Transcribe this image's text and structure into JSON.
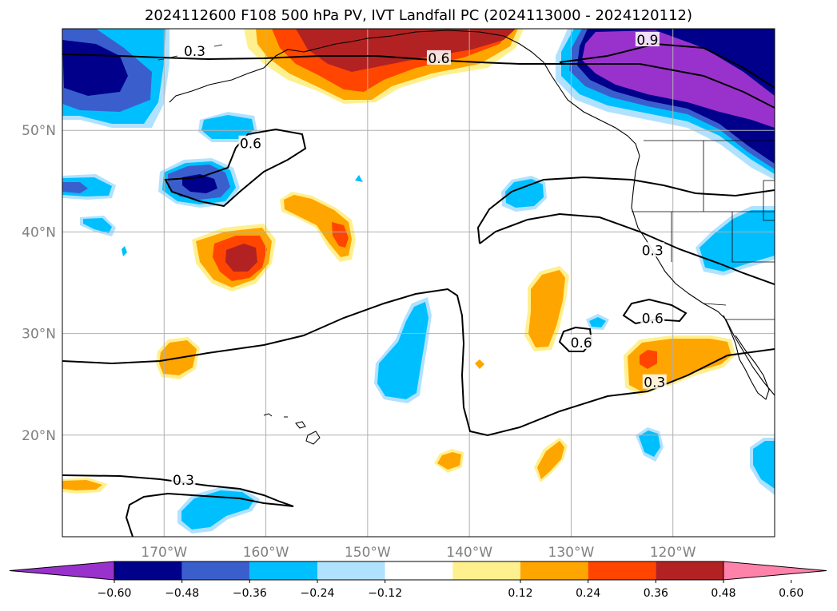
{
  "title": "2024112600 F108 500 hPa PV, IVT Landfall PC (2024113000 - 2024120112)",
  "colors": {
    "neg": [
      "#9932cc",
      "#00008b",
      "#3a5fcd",
      "#00bfff",
      "#b0e2ff"
    ],
    "zero": "#ffffff",
    "pos": [
      "#fff08f",
      "#ffa500",
      "#ff4500",
      "#b22222",
      "#ff82ab"
    ],
    "contour": "#000000",
    "grid": "#b0b0b0",
    "coast": "#000000"
  },
  "chart_data": {
    "type": "map",
    "projection": "PlateCarree",
    "extent": {
      "lon": [
        -180,
        -110
      ],
      "lat": [
        10,
        60
      ]
    },
    "lon_ticks": [
      {
        "value": -170,
        "label": "170°W"
      },
      {
        "value": -160,
        "label": "160°W"
      },
      {
        "value": -150,
        "label": "150°W"
      },
      {
        "value": -140,
        "label": "140°W"
      },
      {
        "value": -130,
        "label": "130°W"
      },
      {
        "value": -120,
        "label": "120°W"
      }
    ],
    "lat_ticks": [
      {
        "value": 50,
        "label": "50°N"
      },
      {
        "value": 40,
        "label": "40°N"
      },
      {
        "value": 30,
        "label": "30°N"
      },
      {
        "value": 20,
        "label": "20°N"
      }
    ],
    "colorbar": {
      "levels": [
        -0.6,
        -0.48,
        -0.36,
        -0.24,
        -0.12,
        0.12,
        0.24,
        0.36,
        0.48,
        0.6
      ],
      "labels": [
        "−0.60",
        "−0.48",
        "−0.36",
        "−0.24",
        "−0.12",
        "0.12",
        "0.24",
        "0.36",
        "0.48",
        "0.60"
      ],
      "extend": "both"
    },
    "contour_labels": [
      {
        "text": "0.3",
        "lon": -167,
        "lat": 57.8
      },
      {
        "text": "0.6",
        "lon": -143,
        "lat": 57.1
      },
      {
        "text": "0.9",
        "lon": -122.5,
        "lat": 58.9
      },
      {
        "text": "0.6",
        "lon": -161.5,
        "lat": 48.7
      },
      {
        "text": "0.3",
        "lon": -122,
        "lat": 38.2
      },
      {
        "text": "0.6",
        "lon": -122,
        "lat": 31.5
      },
      {
        "text": "0.6",
        "lon": -129,
        "lat": 29.1
      },
      {
        "text": "0.3",
        "lon": -121.8,
        "lat": 25.2
      },
      {
        "text": "0.3",
        "lon": -168.1,
        "lat": 15.6
      }
    ],
    "gridlines": true
  }
}
